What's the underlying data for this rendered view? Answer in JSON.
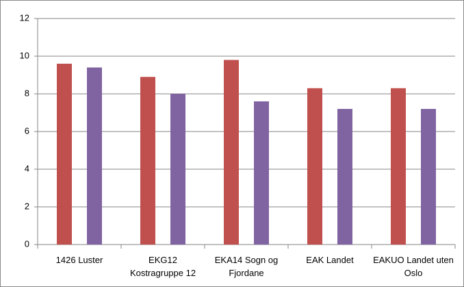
{
  "chart_data": {
    "type": "bar",
    "categories": [
      "1426 Luster",
      "EKG12 Kostragruppe 12",
      "EKA14 Sogn og Fjordane",
      "EAK Landet",
      "EAKUO Landet uten Oslo"
    ],
    "series": [
      {
        "color": "#c0504d",
        "values": [
          9.6,
          8.9,
          9.8,
          8.3,
          8.3
        ]
      },
      {
        "color": "#8064a2",
        "values": [
          9.4,
          8.0,
          7.6,
          7.2,
          7.2
        ]
      }
    ],
    "ylim": [
      0,
      12
    ],
    "yticks": [
      0,
      2,
      4,
      6,
      8,
      10,
      12
    ],
    "grid": true
  }
}
